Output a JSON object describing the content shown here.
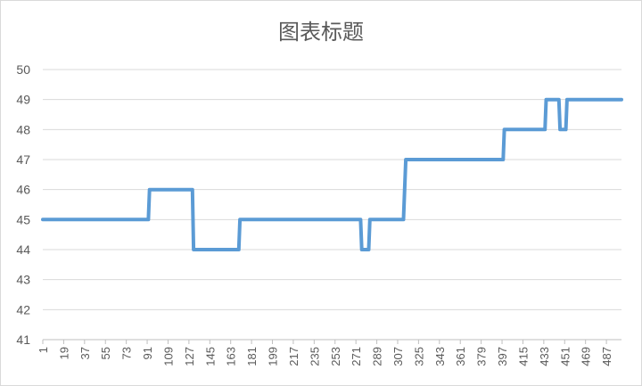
{
  "chart_data": {
    "type": "line",
    "title": "图表标题",
    "xlabel": "",
    "ylabel": "",
    "xlim": [
      1,
      500
    ],
    "ylim": [
      41,
      50
    ],
    "yticks": [
      41,
      42,
      43,
      44,
      45,
      46,
      47,
      48,
      49,
      50
    ],
    "xticks": [
      1,
      19,
      37,
      55,
      73,
      91,
      109,
      127,
      145,
      163,
      181,
      199,
      217,
      235,
      253,
      271,
      289,
      307,
      325,
      343,
      361,
      379,
      397,
      415,
      433,
      451,
      469,
      487
    ],
    "grid": true,
    "legend": "none",
    "series_color": "#5b9bd5",
    "series": [
      {
        "x": [
          1,
          92,
          93,
          130,
          131,
          170,
          171,
          275,
          276,
          282,
          283,
          312,
          313,
          314,
          315,
          398,
          399,
          434,
          435,
          446,
          447,
          452,
          453,
          500
        ],
        "y": [
          45,
          45,
          46,
          46,
          44,
          44,
          45,
          45,
          44,
          44,
          45,
          45,
          46,
          47,
          47,
          47,
          48,
          48,
          49,
          49,
          48,
          48,
          49,
          49
        ]
      }
    ]
  }
}
